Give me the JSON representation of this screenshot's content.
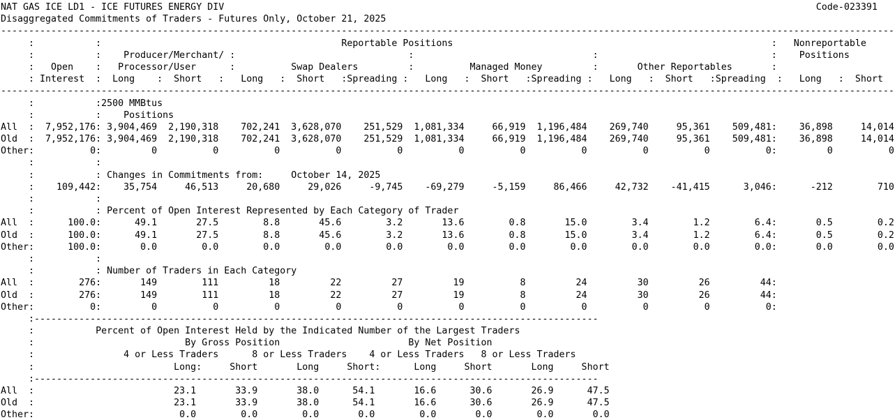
{
  "report": {
    "title": "NAT GAS ICE LD1 - ICE FUTURES ENERGY DIV",
    "code": "Code-023391",
    "subtitle": "Disaggregated Commitments of Traders - Futures Only, October 21, 2025",
    "colors": {
      "text": "#000000",
      "background": "#ffffff"
    },
    "columns": {
      "reportable": "Reportable Positions",
      "nonreportable": "Nonreportable",
      "positions_label": "Positions",
      "producer_merchant_line1": "Producer/Merchant/",
      "producer_merchant_line2": "Processor/User",
      "open": "Open",
      "interest": "Interest",
      "swap_dealers": "Swap Dealers",
      "managed_money": "Managed Money",
      "other_reportables": "Other Reportables",
      "long": "Long",
      "short": "Short",
      "spreading": "Spreading"
    },
    "sections": {
      "positions": {
        "unit": "2500 MMBtus",
        "heading": "Positions",
        "rows": [
          {
            "label": "All",
            "oi": "7,952,176",
            "values": [
              "3,904,469",
              "2,190,318",
              "702,241",
              "3,628,070",
              "251,529",
              "1,081,334",
              "66,919",
              "1,196,484",
              "269,740",
              "95,361",
              "509,481"
            ],
            "nr": [
              "36,898",
              "14,014"
            ]
          },
          {
            "label": "Old",
            "oi": "7,952,176",
            "values": [
              "3,904,469",
              "2,190,318",
              "702,241",
              "3,628,070",
              "251,529",
              "1,081,334",
              "66,919",
              "1,196,484",
              "269,740",
              "95,361",
              "509,481"
            ],
            "nr": [
              "36,898",
              "14,014"
            ]
          },
          {
            "label": "Other",
            "oi": "0",
            "values": [
              "0",
              "0",
              "0",
              "0",
              "0",
              "0",
              "0",
              "0",
              "0",
              "0",
              "0"
            ],
            "nr": [
              "0",
              "0"
            ]
          }
        ]
      },
      "changes": {
        "heading": "Changes in Commitments from:",
        "date": "October 14, 2025",
        "rows": [
          {
            "label": "",
            "oi": "109,442",
            "values": [
              "35,754",
              "46,513",
              "20,680",
              "29,026",
              "-9,745",
              "-69,279",
              "-5,159",
              "86,466",
              "42,732",
              "-41,415",
              "3,046"
            ],
            "nr": [
              "-212",
              "710"
            ]
          }
        ]
      },
      "percent": {
        "heading": "Percent of Open Interest Represented by Each Category of Trader",
        "rows": [
          {
            "label": "All",
            "oi": "100.0",
            "values": [
              "49.1",
              "27.5",
              "8.8",
              "45.6",
              "3.2",
              "13.6",
              "0.8",
              "15.0",
              "3.4",
              "1.2",
              "6.4"
            ],
            "nr": [
              "0.5",
              "0.2"
            ]
          },
          {
            "label": "Old",
            "oi": "100.0",
            "values": [
              "49.1",
              "27.5",
              "8.8",
              "45.6",
              "3.2",
              "13.6",
              "0.8",
              "15.0",
              "3.4",
              "1.2",
              "6.4"
            ],
            "nr": [
              "0.5",
              "0.2"
            ]
          },
          {
            "label": "Other",
            "oi": "100.0",
            "values": [
              "0.0",
              "0.0",
              "0.0",
              "0.0",
              "0.0",
              "0.0",
              "0.0",
              "0.0",
              "0.0",
              "0.0",
              "0.0"
            ],
            "nr": [
              "0.0",
              "0.0"
            ]
          }
        ]
      },
      "traders": {
        "heading": "Number of Traders in Each Category",
        "rows": [
          {
            "label": "All",
            "oi": "276",
            "values": [
              "149",
              "111",
              "18",
              "22",
              "27",
              "19",
              "8",
              "24",
              "30",
              "26",
              "44"
            ],
            "nr": [
              "",
              ""
            ]
          },
          {
            "label": "Old",
            "oi": "276",
            "values": [
              "149",
              "111",
              "18",
              "22",
              "27",
              "19",
              "8",
              "24",
              "30",
              "26",
              "44"
            ],
            "nr": [
              "",
              ""
            ]
          },
          {
            "label": "Other",
            "oi": "0",
            "values": [
              "0",
              "0",
              "0",
              "0",
              "0",
              "0",
              "0",
              "0",
              "0",
              "0",
              "0"
            ],
            "nr": [
              "",
              ""
            ]
          }
        ]
      }
    },
    "concentration": {
      "heading": "Percent of Open Interest Held by the Indicated Number of the Largest Traders",
      "by_gross": "By Gross Position",
      "by_net": "By Net Position",
      "groups": [
        "4 or Less Traders",
        "8 or Less Traders",
        "4 or Less Traders",
        "8 or Less Traders"
      ],
      "col_labels": [
        "Long",
        "Short",
        "Long",
        "Short",
        "Long",
        "Short",
        "Long",
        "Short"
      ],
      "rows": [
        {
          "label": "All",
          "values": [
            "23.1",
            "33.9",
            "38.0",
            "54.1",
            "16.6",
            "30.6",
            "26.9",
            "47.5"
          ]
        },
        {
          "label": "Old",
          "values": [
            "23.1",
            "33.9",
            "38.0",
            "54.1",
            "16.6",
            "30.6",
            "26.9",
            "47.5"
          ]
        },
        {
          "label": "Other",
          "values": [
            "0.0",
            "0.0",
            "0.0",
            "0.0",
            "0.0",
            "0.0",
            "0.0",
            "0.0"
          ]
        }
      ]
    }
  }
}
